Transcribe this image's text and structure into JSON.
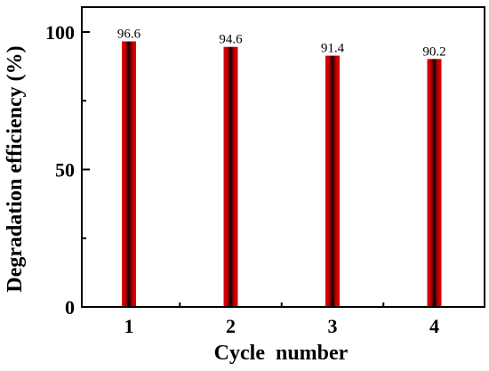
{
  "chart_data": {
    "type": "bar",
    "categories": [
      "1",
      "2",
      "3",
      "4"
    ],
    "values": [
      96.6,
      94.6,
      91.4,
      90.2
    ],
    "data_labels": [
      "96.6",
      "94.6",
      "91.4",
      "90.2"
    ],
    "title": "",
    "xlabel": "Cycle  number",
    "ylabel": "Degradation efficiency (%)",
    "ylim": [
      0,
      100
    ],
    "yticks": [
      0,
      50,
      100
    ],
    "ytick_labels": [
      "0",
      "50",
      "100"
    ],
    "grid": false,
    "legend": "none",
    "bar_colors": {
      "edge": "#e00000",
      "center": "#1a0000"
    },
    "axis_color": "#000000"
  }
}
